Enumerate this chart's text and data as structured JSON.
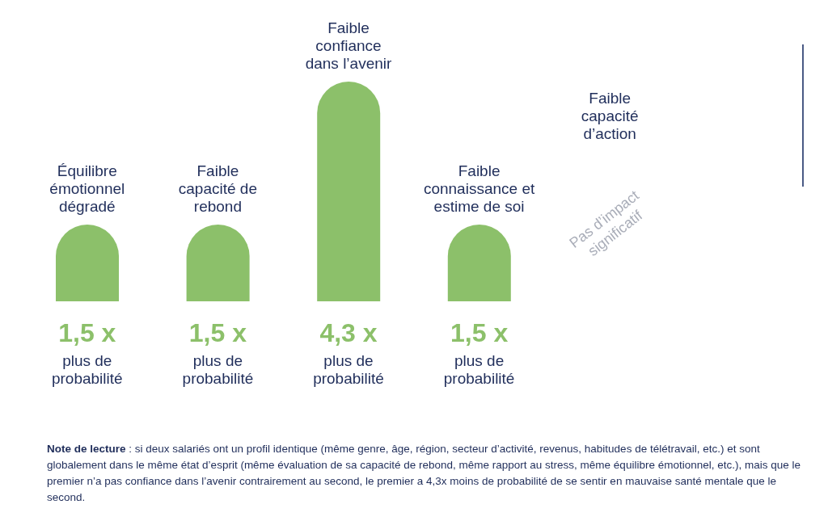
{
  "chart_data": {
    "type": "bar",
    "categories": [
      "Équilibre\némotionnel\ndégradé",
      "Faible\ncapacité de\nrebond",
      "Faible\nconfiance\ndans l’avenir",
      "Faible\nconnaissance et\nestime de soi",
      "Faible\ncapacité\nd’action"
    ],
    "values": [
      1.5,
      1.5,
      4.3,
      1.5,
      null
    ],
    "value_labels": [
      "1,5 x\nplus de\nprobabilité",
      "1,5 x\nplus de\nprobabilité",
      "4,3 x\nplus de\nprobabilité",
      "1,5 x\nplus de\nprobabilité",
      null
    ],
    "color": "#8cc06a",
    "annotations": [
      "Pas d’impact\nsignificatif",
      "Note de lecture : si deux salariés ont un profil identique (même genre, âge, région, secteur d’activité, revenus, habitudes de télétravail, etc.) et sont globalement dans le même état d’esprit (même évaluation de sa capacité de rebond, même rapport au stress, même équilibre émotionnel, etc.), mais que le premier n’a pas confiance dans l’avenir contrairement au second, le premier a 4,3x moins de probabilité de se sentir en mauvaise santé mentale que le second."
    ]
  }
}
